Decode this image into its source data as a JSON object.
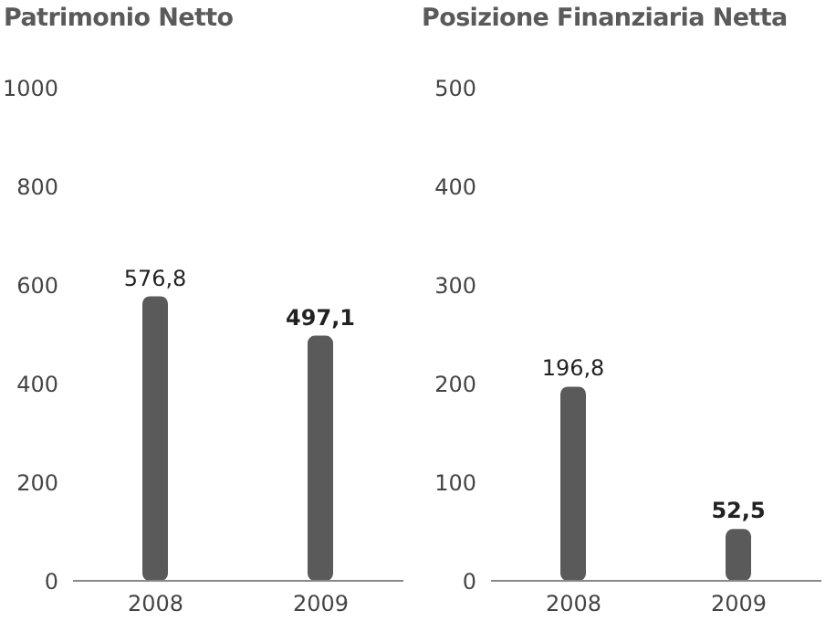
{
  "chart_data": [
    {
      "type": "bar",
      "title": "Patrimonio Netto",
      "categories": [
        "2008",
        "2009"
      ],
      "values": [
        576.8,
        497.1
      ],
      "value_labels": [
        "576,8",
        "497,1"
      ],
      "color": "#5a5a5a",
      "ylim": [
        0,
        1000
      ],
      "yticks": [
        0,
        200,
        400,
        600,
        800,
        1000
      ],
      "grid": false,
      "legend": false
    },
    {
      "type": "bar",
      "title": "Posizione Finanziaria Netta",
      "categories": [
        "2008",
        "2009"
      ],
      "values": [
        196.8,
        52.5
      ],
      "value_labels": [
        "196,8",
        "52,5"
      ],
      "color": "#5a5a5a",
      "ylim": [
        0,
        500
      ],
      "yticks": [
        0,
        100,
        200,
        300,
        400,
        500
      ],
      "grid": false,
      "legend": false
    }
  ]
}
